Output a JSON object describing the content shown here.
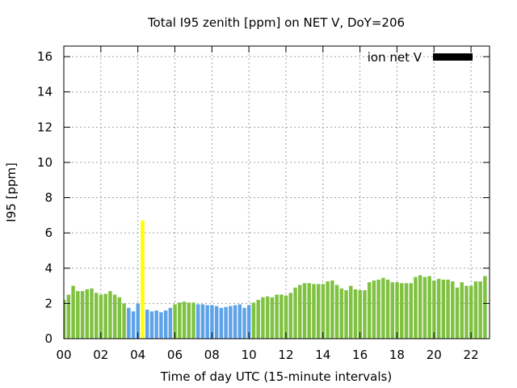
{
  "chart_data": {
    "type": "bar",
    "title": "Total I95 zenith [ppm] on NET V, DoY=206",
    "xlabel": "Time of day UTC (15-minute intervals)",
    "ylabel": "I95 [ppm]",
    "xlim": [
      0,
      23
    ],
    "ylim": [
      0,
      16.6
    ],
    "x_ticks": [
      "00",
      "02",
      "04",
      "06",
      "08",
      "10",
      "12",
      "14",
      "16",
      "18",
      "20",
      "22"
    ],
    "y_ticks": [
      "0",
      "2",
      "4",
      "6",
      "8",
      "10",
      "12",
      "14",
      "16"
    ],
    "grid": true,
    "legend": {
      "label": "ion net V",
      "placement": "top-right",
      "color": "#000000"
    },
    "colors": {
      "green": "#7fc241",
      "blue": "#5ea3ea",
      "yellow": "#ffff00"
    },
    "bars": [
      {
        "t": 0.0,
        "v": 2.2,
        "c": "green"
      },
      {
        "t": 0.25,
        "v": 2.5,
        "c": "green"
      },
      {
        "t": 0.5,
        "v": 3.0,
        "c": "green"
      },
      {
        "t": 0.75,
        "v": 2.7,
        "c": "green"
      },
      {
        "t": 1.0,
        "v": 2.7,
        "c": "green"
      },
      {
        "t": 1.25,
        "v": 2.8,
        "c": "green"
      },
      {
        "t": 1.5,
        "v": 2.85,
        "c": "green"
      },
      {
        "t": 1.75,
        "v": 2.6,
        "c": "green"
      },
      {
        "t": 2.0,
        "v": 2.5,
        "c": "green"
      },
      {
        "t": 2.25,
        "v": 2.55,
        "c": "green"
      },
      {
        "t": 2.5,
        "v": 2.7,
        "c": "green"
      },
      {
        "t": 2.75,
        "v": 2.5,
        "c": "green"
      },
      {
        "t": 3.0,
        "v": 2.35,
        "c": "green"
      },
      {
        "t": 3.25,
        "v": 2.0,
        "c": "green"
      },
      {
        "t": 3.5,
        "v": 1.75,
        "c": "blue"
      },
      {
        "t": 3.75,
        "v": 1.55,
        "c": "blue"
      },
      {
        "t": 4.0,
        "v": 2.0,
        "c": "blue"
      },
      {
        "t": 4.25,
        "v": 6.7,
        "c": "yellow"
      },
      {
        "t": 4.5,
        "v": 1.65,
        "c": "blue"
      },
      {
        "t": 4.75,
        "v": 1.55,
        "c": "blue"
      },
      {
        "t": 5.0,
        "v": 1.6,
        "c": "blue"
      },
      {
        "t": 5.25,
        "v": 1.5,
        "c": "blue"
      },
      {
        "t": 5.5,
        "v": 1.6,
        "c": "blue"
      },
      {
        "t": 5.75,
        "v": 1.75,
        "c": "blue"
      },
      {
        "t": 6.0,
        "v": 1.95,
        "c": "green"
      },
      {
        "t": 6.25,
        "v": 2.05,
        "c": "green"
      },
      {
        "t": 6.5,
        "v": 2.1,
        "c": "green"
      },
      {
        "t": 6.75,
        "v": 2.05,
        "c": "green"
      },
      {
        "t": 7.0,
        "v": 2.05,
        "c": "green"
      },
      {
        "t": 7.25,
        "v": 1.95,
        "c": "blue"
      },
      {
        "t": 7.5,
        "v": 1.95,
        "c": "blue"
      },
      {
        "t": 7.75,
        "v": 1.9,
        "c": "blue"
      },
      {
        "t": 8.0,
        "v": 1.9,
        "c": "blue"
      },
      {
        "t": 8.25,
        "v": 1.85,
        "c": "blue"
      },
      {
        "t": 8.5,
        "v": 1.75,
        "c": "blue"
      },
      {
        "t": 8.75,
        "v": 1.8,
        "c": "blue"
      },
      {
        "t": 9.0,
        "v": 1.85,
        "c": "blue"
      },
      {
        "t": 9.25,
        "v": 1.9,
        "c": "blue"
      },
      {
        "t": 9.5,
        "v": 1.95,
        "c": "blue"
      },
      {
        "t": 9.75,
        "v": 1.75,
        "c": "blue"
      },
      {
        "t": 10.0,
        "v": 1.9,
        "c": "blue"
      },
      {
        "t": 10.25,
        "v": 2.05,
        "c": "green"
      },
      {
        "t": 10.5,
        "v": 2.2,
        "c": "green"
      },
      {
        "t": 10.75,
        "v": 2.35,
        "c": "green"
      },
      {
        "t": 11.0,
        "v": 2.4,
        "c": "green"
      },
      {
        "t": 11.25,
        "v": 2.35,
        "c": "green"
      },
      {
        "t": 11.5,
        "v": 2.5,
        "c": "green"
      },
      {
        "t": 11.75,
        "v": 2.5,
        "c": "green"
      },
      {
        "t": 12.0,
        "v": 2.45,
        "c": "green"
      },
      {
        "t": 12.25,
        "v": 2.6,
        "c": "green"
      },
      {
        "t": 12.5,
        "v": 2.9,
        "c": "green"
      },
      {
        "t": 12.75,
        "v": 3.05,
        "c": "green"
      },
      {
        "t": 13.0,
        "v": 3.15,
        "c": "green"
      },
      {
        "t": 13.25,
        "v": 3.15,
        "c": "green"
      },
      {
        "t": 13.5,
        "v": 3.1,
        "c": "green"
      },
      {
        "t": 13.75,
        "v": 3.1,
        "c": "green"
      },
      {
        "t": 14.0,
        "v": 3.1,
        "c": "green"
      },
      {
        "t": 14.25,
        "v": 3.25,
        "c": "green"
      },
      {
        "t": 14.5,
        "v": 3.3,
        "c": "green"
      },
      {
        "t": 14.75,
        "v": 3.05,
        "c": "green"
      },
      {
        "t": 15.0,
        "v": 2.85,
        "c": "green"
      },
      {
        "t": 15.25,
        "v": 2.75,
        "c": "green"
      },
      {
        "t": 15.5,
        "v": 3.0,
        "c": "green"
      },
      {
        "t": 15.75,
        "v": 2.8,
        "c": "green"
      },
      {
        "t": 16.0,
        "v": 2.75,
        "c": "green"
      },
      {
        "t": 16.25,
        "v": 2.75,
        "c": "green"
      },
      {
        "t": 16.5,
        "v": 3.2,
        "c": "green"
      },
      {
        "t": 16.75,
        "v": 3.3,
        "c": "green"
      },
      {
        "t": 17.0,
        "v": 3.35,
        "c": "green"
      },
      {
        "t": 17.25,
        "v": 3.45,
        "c": "green"
      },
      {
        "t": 17.5,
        "v": 3.35,
        "c": "green"
      },
      {
        "t": 17.75,
        "v": 3.2,
        "c": "green"
      },
      {
        "t": 18.0,
        "v": 3.2,
        "c": "green"
      },
      {
        "t": 18.25,
        "v": 3.15,
        "c": "green"
      },
      {
        "t": 18.5,
        "v": 3.15,
        "c": "green"
      },
      {
        "t": 18.75,
        "v": 3.15,
        "c": "green"
      },
      {
        "t": 19.0,
        "v": 3.5,
        "c": "green"
      },
      {
        "t": 19.25,
        "v": 3.6,
        "c": "green"
      },
      {
        "t": 19.5,
        "v": 3.5,
        "c": "green"
      },
      {
        "t": 19.75,
        "v": 3.55,
        "c": "green"
      },
      {
        "t": 20.0,
        "v": 3.3,
        "c": "green"
      },
      {
        "t": 20.25,
        "v": 3.4,
        "c": "green"
      },
      {
        "t": 20.5,
        "v": 3.35,
        "c": "green"
      },
      {
        "t": 20.75,
        "v": 3.35,
        "c": "green"
      },
      {
        "t": 21.0,
        "v": 3.25,
        "c": "green"
      },
      {
        "t": 21.25,
        "v": 2.9,
        "c": "green"
      },
      {
        "t": 21.5,
        "v": 3.2,
        "c": "green"
      },
      {
        "t": 21.75,
        "v": 3.0,
        "c": "green"
      },
      {
        "t": 22.0,
        "v": 3.0,
        "c": "green"
      },
      {
        "t": 22.25,
        "v": 3.25,
        "c": "green"
      },
      {
        "t": 22.5,
        "v": 3.25,
        "c": "green"
      },
      {
        "t": 22.75,
        "v": 3.55,
        "c": "green"
      }
    ]
  }
}
